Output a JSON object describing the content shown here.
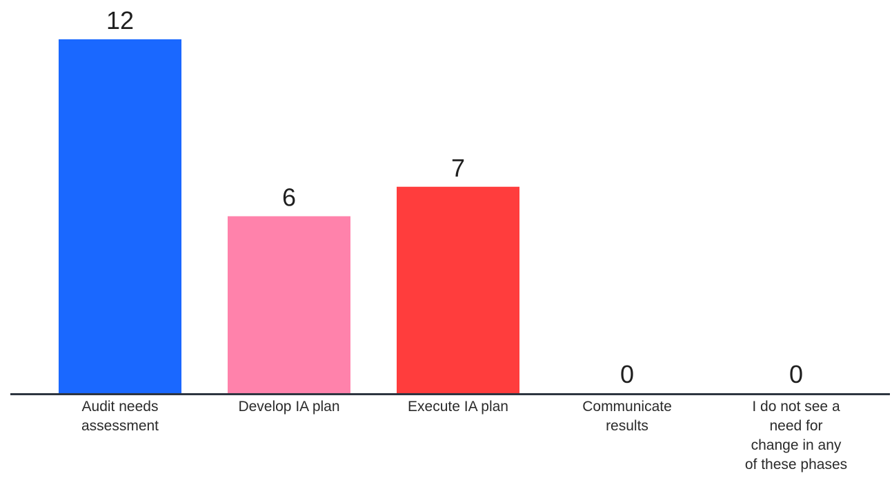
{
  "chart_data": {
    "type": "bar",
    "categories": [
      [
        "Audit needs",
        "assessment"
      ],
      [
        "Develop IA plan"
      ],
      [
        "Execute IA plan"
      ],
      [
        "Communicate",
        "results"
      ],
      [
        "I do not see a",
        "need for",
        "change in any",
        "of these phases"
      ]
    ],
    "values": [
      12,
      6,
      7,
      0,
      0
    ],
    "value_labels": [
      "12",
      "6",
      "7",
      "0",
      "0"
    ],
    "colors": [
      "#1a68ff",
      "#ff82ab",
      "#ff3d3d",
      "#1a68ff",
      "#1a68ff"
    ],
    "axis_color": "#2d3540",
    "ylim": [
      0,
      12
    ],
    "grid": false,
    "legend": "none",
    "title": "",
    "xlabel": "",
    "ylabel": ""
  }
}
